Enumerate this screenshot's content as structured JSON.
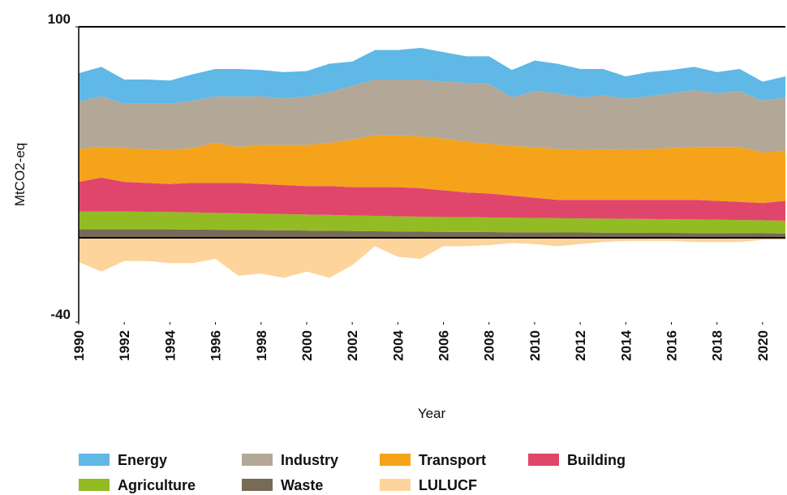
{
  "chart_data": {
    "type": "stacked_area",
    "xlabel": "Year",
    "ylabel": "MtCO2-eq",
    "x": [
      1990,
      1991,
      1992,
      1993,
      1994,
      1995,
      1996,
      1997,
      1998,
      1999,
      2000,
      2001,
      2002,
      2003,
      2004,
      2005,
      2006,
      2007,
      2008,
      2009,
      2010,
      2011,
      2012,
      2013,
      2014,
      2015,
      2016,
      2017,
      2018,
      2019,
      2020,
      2021
    ],
    "xlim": [
      1990,
      2021
    ],
    "xticks": [
      1990,
      1992,
      1994,
      1996,
      1998,
      2000,
      2002,
      2004,
      2006,
      2008,
      2010,
      2012,
      2014,
      2016,
      2018,
      2020
    ],
    "ylim": [
      -40,
      100
    ],
    "yticks": [
      -40,
      100
    ],
    "series": [
      {
        "name": "Energy",
        "color": "#5fb8e6",
        "values": [
          13.5,
          14,
          11.5,
          11.5,
          11,
          12.5,
          13,
          13,
          12.5,
          12.5,
          12,
          13.5,
          11.5,
          14,
          14,
          15,
          14,
          12.5,
          13,
          13,
          14.5,
          14,
          13.5,
          12.5,
          10.5,
          11.5,
          11,
          11,
          10,
          10.5,
          9,
          10
        ]
      },
      {
        "name": "Industry",
        "color": "#b3a898",
        "values": [
          22.5,
          24,
          21,
          21.5,
          22,
          22.5,
          22,
          24,
          23,
          22,
          23,
          24,
          25.5,
          26.5,
          26.5,
          27,
          27,
          28,
          28.5,
          23,
          26.5,
          26.5,
          25,
          25.5,
          24.5,
          25,
          26,
          27,
          25.5,
          26.5,
          24.5,
          25.5
        ]
      },
      {
        "name": "Transport",
        "color": "#f5a31a",
        "values": [
          15.5,
          14.5,
          16,
          16,
          16,
          16.5,
          19,
          17,
          18.5,
          19,
          19.5,
          20.5,
          22.5,
          24.5,
          24.5,
          24.5,
          24.5,
          24,
          23.5,
          23.5,
          24,
          24,
          23.5,
          24,
          23.5,
          24,
          24.5,
          25,
          25.5,
          26,
          24,
          23.5
        ]
      },
      {
        "name": "Building",
        "color": "#e0466c",
        "values": [
          14.0,
          16.0,
          14.1,
          13.7,
          13.3,
          14.0,
          14.2,
          14.4,
          14.1,
          13.8,
          13.5,
          13.7,
          13.4,
          13.6,
          13.8,
          13.5,
          12.7,
          11.7,
          11.4,
          10.5,
          9.6,
          8.7,
          8.8,
          8.9,
          9.0,
          9.1,
          9.2,
          9.3,
          8.9,
          8.6,
          8.2,
          9.4
        ]
      },
      {
        "name": "Agriculture",
        "color": "#93bb23",
        "values": [
          8.5,
          8.5,
          8.4,
          8.3,
          8.2,
          8.1,
          8.0,
          7.9,
          7.8,
          7.7,
          7.6,
          7.5,
          7.4,
          7.3,
          7.2,
          7.1,
          7.0,
          7.0,
          6.9,
          6.9,
          6.8,
          6.8,
          6.7,
          6.7,
          6.6,
          6.6,
          6.5,
          6.5,
          6.4,
          6.3,
          6.2,
          6.1
        ]
      },
      {
        "name": "Waste",
        "color": "#776a56",
        "values": [
          4,
          4,
          4,
          4,
          4,
          3.9,
          3.8,
          3.7,
          3.6,
          3.5,
          3.4,
          3.3,
          3.2,
          3.1,
          3.0,
          2.9,
          2.8,
          2.8,
          2.7,
          2.6,
          2.6,
          2.5,
          2.5,
          2.4,
          2.4,
          2.3,
          2.3,
          2.2,
          2.2,
          2.1,
          2.1,
          2.0
        ]
      },
      {
        "name": "LULUCF",
        "color": "#fcd49c",
        "values": [
          -11.5,
          -16,
          -11,
          -11,
          -12,
          -12,
          -10,
          -18,
          -17,
          -19,
          -16,
          -19,
          -13,
          -4,
          -9,
          -10,
          -4,
          -4,
          -3.5,
          -2.5,
          -3,
          -4,
          -3,
          -2,
          -1.5,
          -1.5,
          -1.5,
          -2,
          -2,
          -2,
          -1,
          -1
        ]
      }
    ]
  }
}
